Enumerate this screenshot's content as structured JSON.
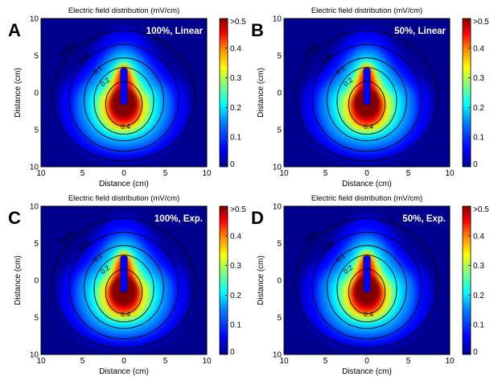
{
  "colormap": [
    "#00008f",
    "#0000ff",
    "#0080ff",
    "#00ffff",
    "#80ff80",
    "#ffff00",
    "#ff8000",
    "#ff0000",
    "#800000"
  ],
  "contour_color": "#000000",
  "panels": [
    {
      "letter": "A",
      "title": "Electric field distribution (mV/cm)",
      "condition": "100%, Linear",
      "xlabel": "Distance (cm)",
      "ylabel": "Distance (cm)",
      "x_ticks": [
        "10",
        "5",
        "0",
        "5",
        "10"
      ],
      "y_ticks": [
        "10",
        "5",
        "0",
        "5",
        "10"
      ],
      "colorbar_ticks": [
        ">0.5",
        "0.4",
        "0.3",
        "0.2",
        "0.1",
        "0"
      ],
      "contour_labels": [
        "0.025",
        "0.05",
        "0.1",
        "0.2",
        "0.4"
      ]
    },
    {
      "letter": "B",
      "title": "Electric field distribution (mV/cm)",
      "condition": "50%, Linear",
      "xlabel": "Distance (cm)",
      "ylabel": "Distance (cm)",
      "x_ticks": [
        "10",
        "5",
        "0",
        "5",
        "10"
      ],
      "y_ticks": [
        "10",
        "5",
        "0",
        "5",
        "10"
      ],
      "colorbar_ticks": [
        ">0.5",
        "0.4",
        "0.3",
        "0.2",
        "0.1",
        "0"
      ],
      "contour_labels": [
        "0.025",
        "0.05",
        "0.1",
        "0.2",
        "0.4"
      ]
    },
    {
      "letter": "C",
      "title": "Electric field distribution (mV/cm)",
      "condition": "100%, Exp.",
      "xlabel": "Distance (cm)",
      "ylabel": "Distance (cm)",
      "x_ticks": [
        "10",
        "5",
        "0",
        "5",
        "10"
      ],
      "y_ticks": [
        "10",
        "5",
        "0",
        "5",
        "10"
      ],
      "colorbar_ticks": [
        ">0.5",
        "0.4",
        "0.3",
        "0.2",
        "0.1",
        "0"
      ],
      "contour_labels": [
        "0.025",
        "0.05",
        "0.1",
        "0.2",
        "0.4"
      ]
    },
    {
      "letter": "D",
      "title": "Electric field distribution (mV/cm)",
      "condition": "50%, Exp.",
      "xlabel": "Distance (cm)",
      "ylabel": "Distance (cm)",
      "x_ticks": [
        "10",
        "5",
        "0",
        "5",
        "10"
      ],
      "y_ticks": [
        "10",
        "5",
        "0",
        "5",
        "10"
      ],
      "colorbar_ticks": [
        ">0.5",
        "0.4",
        "0.3",
        "0.2",
        "0.1",
        "0"
      ],
      "contour_labels": [
        "0.025",
        "0.05",
        "0.1",
        "0.2",
        "0.4"
      ]
    }
  ],
  "chart_data": [
    {
      "type": "heatmap",
      "title": "Electric field distribution (mV/cm)",
      "annotation": "100%, Linear",
      "xlabel": "Distance (cm)",
      "ylabel": "Distance (cm)",
      "xlim": [
        -10,
        10
      ],
      "ylim": [
        -10,
        10
      ],
      "colorbar_range": [
        0,
        0.5
      ],
      "contour_levels": [
        0.025,
        0.05,
        0.1,
        0.2,
        0.4
      ],
      "legend": "colorbar-right",
      "grid": false
    },
    {
      "type": "heatmap",
      "title": "Electric field distribution (mV/cm)",
      "annotation": "50%, Linear",
      "xlabel": "Distance (cm)",
      "ylabel": "Distance (cm)",
      "xlim": [
        -10,
        10
      ],
      "ylim": [
        -10,
        10
      ],
      "colorbar_range": [
        0,
        0.5
      ],
      "contour_levels": [
        0.025,
        0.05,
        0.1,
        0.2,
        0.4
      ],
      "legend": "colorbar-right",
      "grid": false
    },
    {
      "type": "heatmap",
      "title": "Electric field distribution (mV/cm)",
      "annotation": "100%, Exp.",
      "xlabel": "Distance (cm)",
      "ylabel": "Distance (cm)",
      "xlim": [
        -10,
        10
      ],
      "ylim": [
        -10,
        10
      ],
      "colorbar_range": [
        0,
        0.5
      ],
      "contour_levels": [
        0.025,
        0.05,
        0.1,
        0.2,
        0.4
      ],
      "legend": "colorbar-right",
      "grid": false
    },
    {
      "type": "heatmap",
      "title": "Electric field distribution (mV/cm)",
      "annotation": "50%, Exp.",
      "xlabel": "Distance (cm)",
      "ylabel": "Distance (cm)",
      "xlim": [
        -10,
        10
      ],
      "ylim": [
        -10,
        10
      ],
      "colorbar_range": [
        0,
        0.5
      ],
      "contour_levels": [
        0.025,
        0.05,
        0.1,
        0.2,
        0.4
      ],
      "legend": "colorbar-right",
      "grid": false
    }
  ]
}
